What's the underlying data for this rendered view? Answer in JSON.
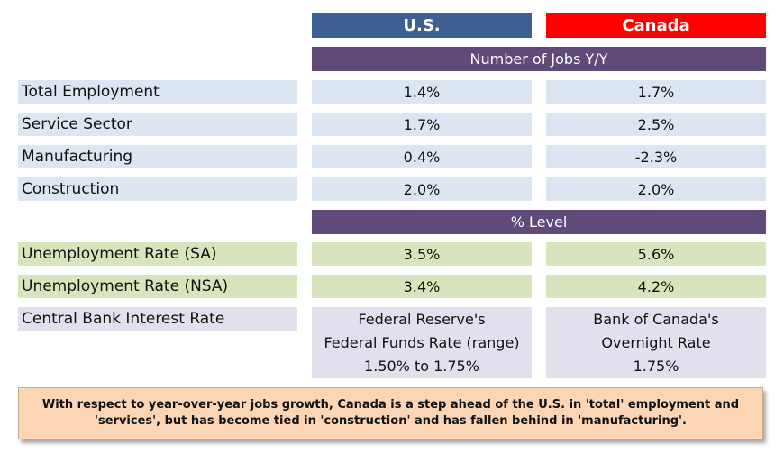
{
  "header": {
    "us": "U.S.",
    "canada": "Canada"
  },
  "bands": {
    "jobs": "Number of Jobs Y/Y",
    "level": "% Level"
  },
  "jobs_rows": [
    {
      "label": "Total Employment",
      "us": "1.4%",
      "canada": "1.7%"
    },
    {
      "label": "Service Sector",
      "us": "1.7%",
      "canada": "2.5%"
    },
    {
      "label": "Manufacturing",
      "us": "0.4%",
      "canada": "-2.3%"
    },
    {
      "label": "Construction",
      "us": "2.0%",
      "canada": "2.0%"
    }
  ],
  "level_rows": [
    {
      "label": "Unemployment Rate (SA)",
      "us": "3.5%",
      "canada": "5.6%"
    },
    {
      "label": "Unemployment Rate (NSA)",
      "us": "3.4%",
      "canada": "4.2%"
    }
  ],
  "interest": {
    "label": "Central Bank Interest Rate",
    "us_lines": [
      "Federal Reserve's",
      "Federal Funds Rate (range)",
      "1.50% to 1.75%"
    ],
    "canada_lines": [
      "Bank of Canada's",
      "Overnight Rate",
      "1.75%"
    ]
  },
  "note": {
    "line1": "With respect to year-over-year jobs growth, Canada is a step ahead of  the U.S. in 'total' employment and",
    "line2": "'services', but has become tied in 'construction' and has fallen behind in 'manufacturing'."
  },
  "colors": {
    "us_header": "#3d5f91",
    "canada_header": "#ff0000",
    "band": "#5f4a7a",
    "row_blue": "#dce6f2",
    "row_green": "#d8e4bc",
    "row_lavender": "#e4dfec",
    "note_bg": "#fcd5b4"
  }
}
